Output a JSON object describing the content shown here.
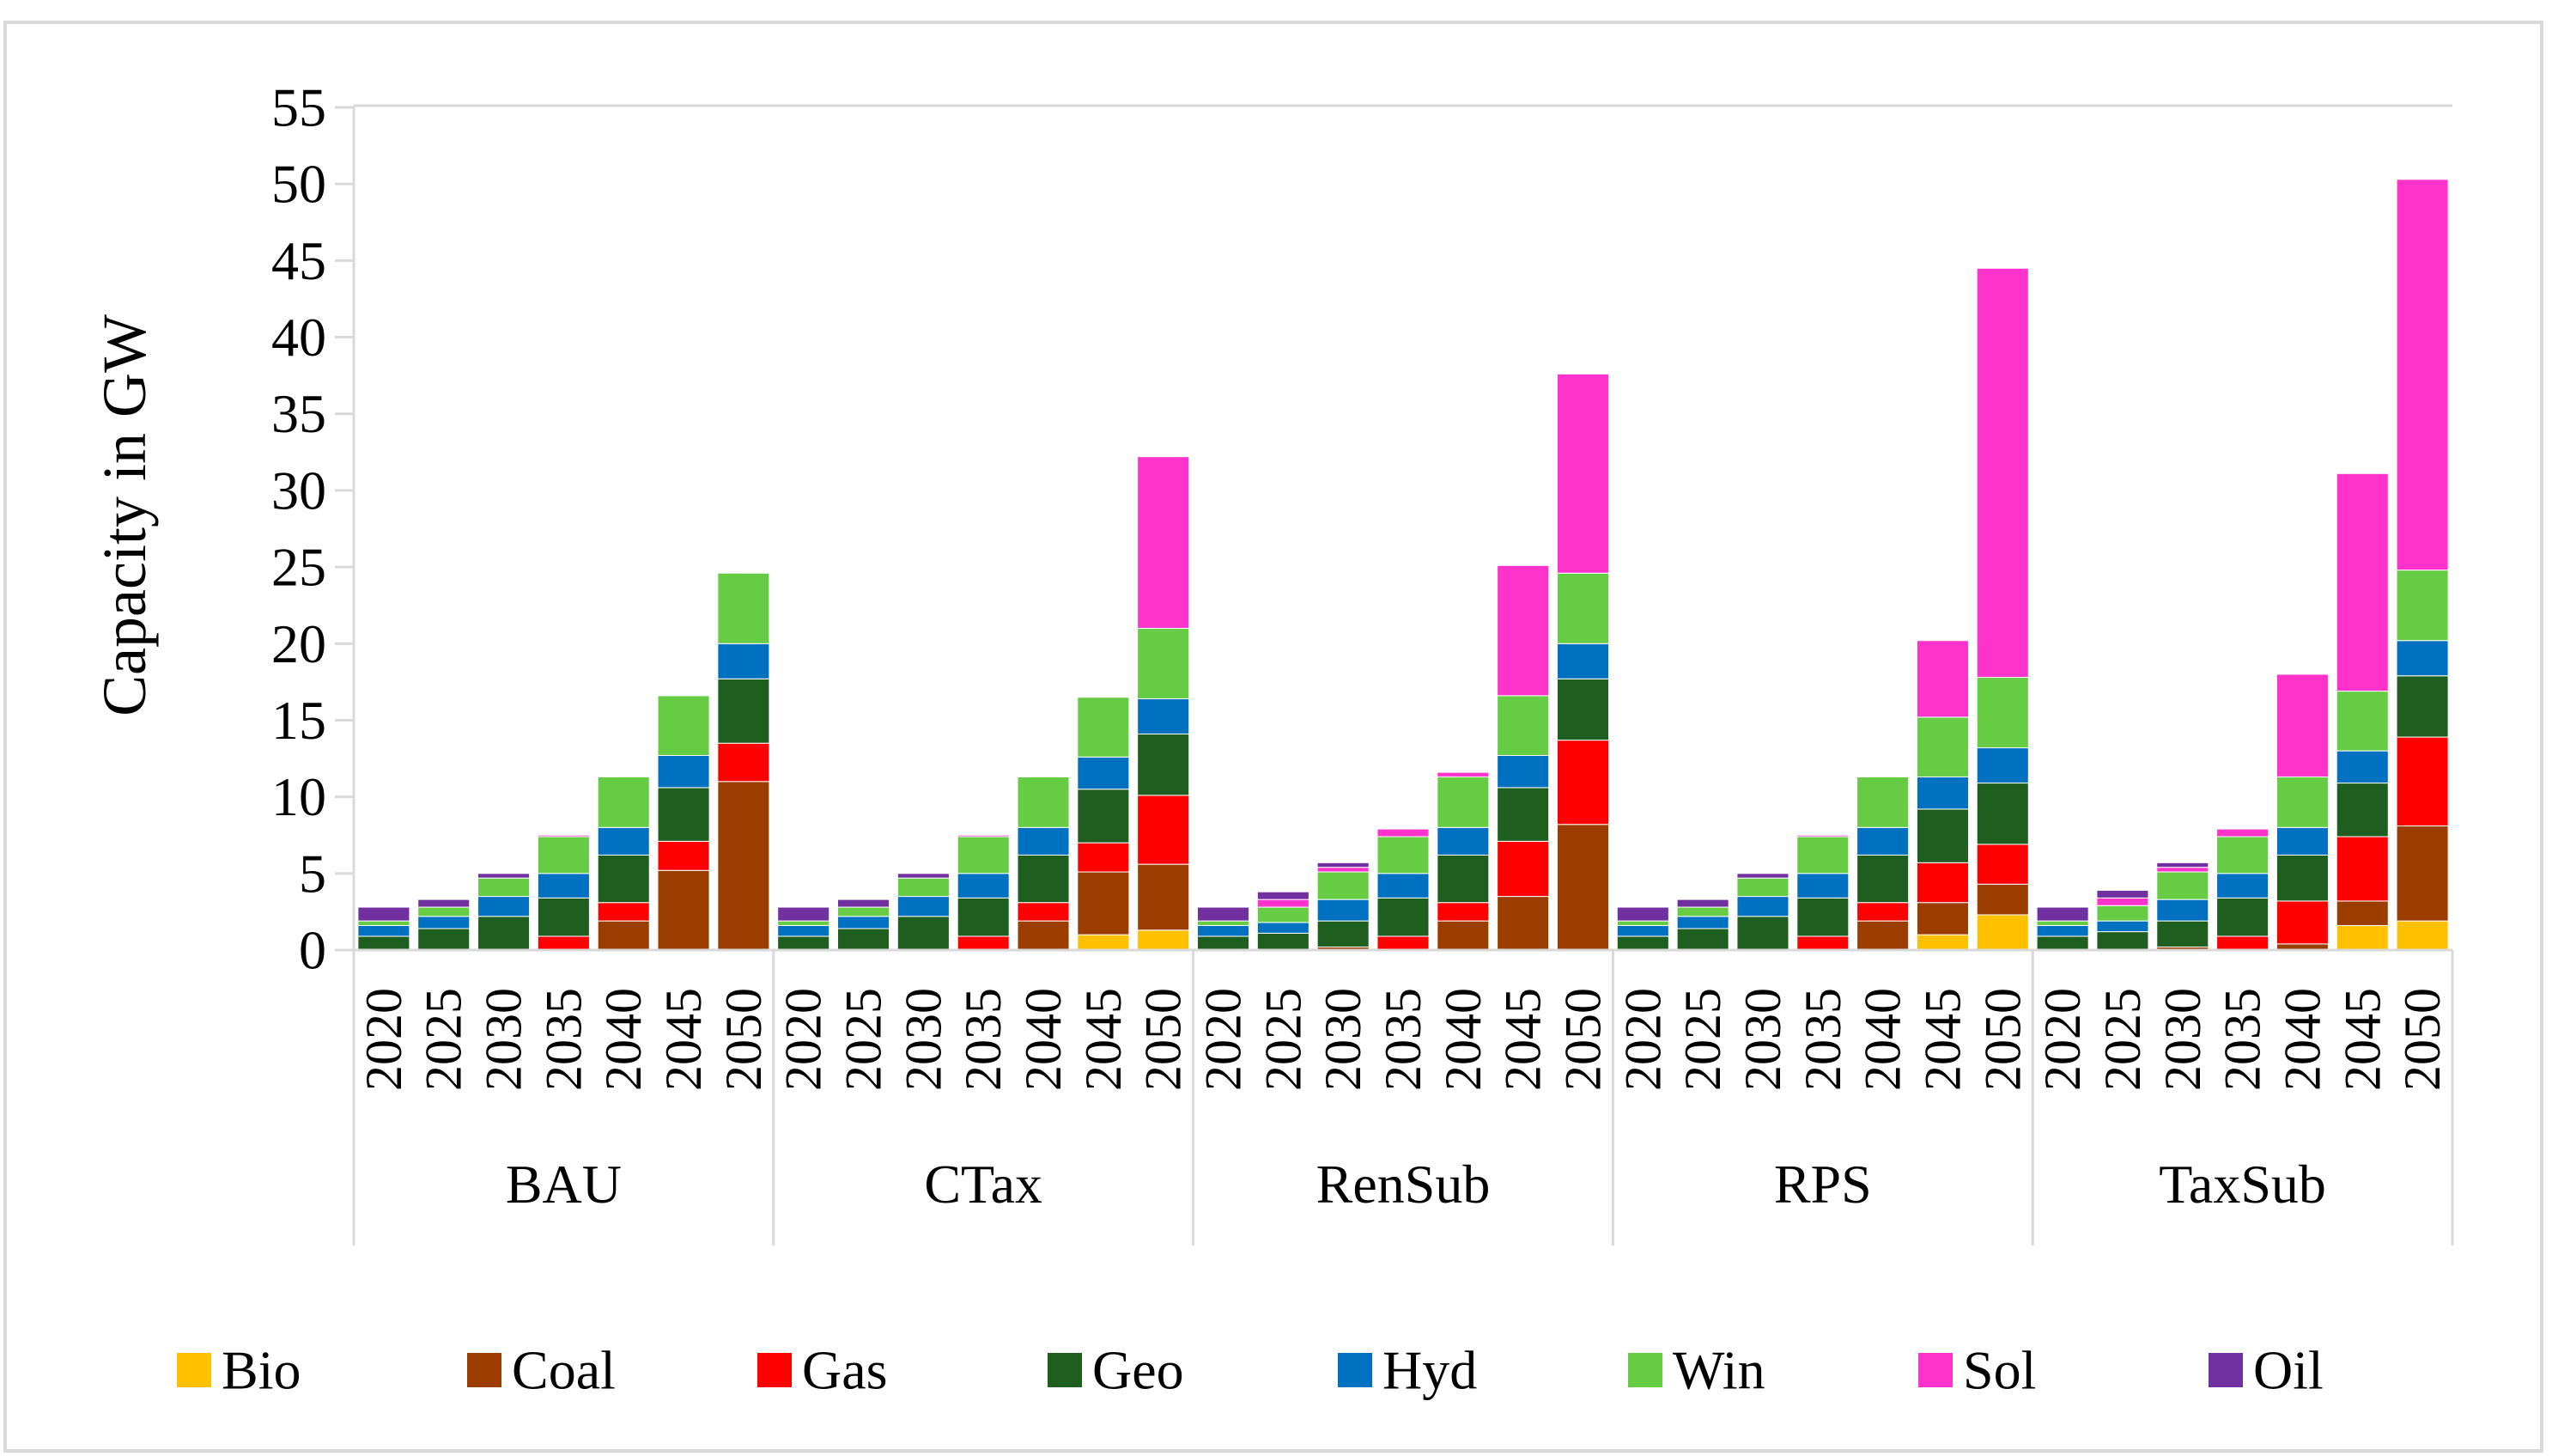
{
  "chart_data": {
    "type": "bar",
    "stacked": true,
    "title": "",
    "xlabel": "",
    "ylabel": "Capacity in GW",
    "ylim": [
      0,
      55
    ],
    "y_ticks": [
      0,
      5,
      10,
      15,
      20,
      25,
      30,
      35,
      40,
      45,
      50,
      55
    ],
    "grid": false,
    "legend_position": "bottom",
    "groups": [
      "BAU",
      "CTax",
      "RenSub",
      "RPS",
      "TaxSub"
    ],
    "years": [
      "2020",
      "2025",
      "2030",
      "2035",
      "2040",
      "2045",
      "2050"
    ],
    "series": [
      {
        "name": "Bio",
        "color": "#FFC000",
        "values": [
          [
            0,
            0,
            0,
            0,
            0,
            0,
            0
          ],
          [
            0,
            0,
            0,
            0,
            0,
            1.0,
            1.3
          ],
          [
            0,
            0,
            0,
            0,
            0,
            0,
            0
          ],
          [
            0,
            0,
            0,
            0,
            0,
            1.0,
            2.3
          ],
          [
            0,
            0,
            0,
            0,
            0,
            1.6,
            1.9
          ]
        ]
      },
      {
        "name": "Coal",
        "color": "#9C3D00",
        "values": [
          [
            0,
            0,
            0,
            0,
            1.9,
            5.2,
            11.0
          ],
          [
            0,
            0,
            0,
            0,
            1.9,
            4.1,
            4.3
          ],
          [
            0,
            0,
            0.2,
            0,
            1.9,
            3.5,
            8.2
          ],
          [
            0,
            0,
            0,
            0,
            1.9,
            2.1,
            2.0
          ],
          [
            0,
            0,
            0.2,
            0,
            0.4,
            1.6,
            6.2
          ]
        ]
      },
      {
        "name": "Gas",
        "color": "#FF0000",
        "values": [
          [
            0,
            0,
            0,
            0.9,
            1.2,
            1.9,
            2.5
          ],
          [
            0,
            0,
            0,
            0.9,
            1.2,
            1.9,
            4.5
          ],
          [
            0,
            0,
            0,
            0.9,
            1.2,
            3.6,
            5.5
          ],
          [
            0,
            0,
            0,
            0.9,
            1.2,
            2.6,
            2.6
          ],
          [
            0,
            0,
            0,
            0.9,
            2.8,
            4.2,
            5.8
          ]
        ]
      },
      {
        "name": "Geo",
        "color": "#1E5E1E",
        "values": [
          [
            0.9,
            1.4,
            2.2,
            2.5,
            3.1,
            3.5,
            4.2
          ],
          [
            0.9,
            1.4,
            2.2,
            2.5,
            3.1,
            3.5,
            4.0
          ],
          [
            0.9,
            1.1,
            1.7,
            2.5,
            3.1,
            3.5,
            4.0
          ],
          [
            0.9,
            1.4,
            2.2,
            2.5,
            3.1,
            3.5,
            4.0
          ],
          [
            0.9,
            1.2,
            1.7,
            2.5,
            3.0,
            3.5,
            4.0
          ]
        ]
      },
      {
        "name": "Hyd",
        "color": "#0070C0",
        "values": [
          [
            0.7,
            0.8,
            1.3,
            1.6,
            1.8,
            2.1,
            2.3
          ],
          [
            0.7,
            0.8,
            1.3,
            1.6,
            1.8,
            2.1,
            2.3
          ],
          [
            0.7,
            0.7,
            1.4,
            1.6,
            1.8,
            2.1,
            2.3
          ],
          [
            0.7,
            0.8,
            1.3,
            1.6,
            1.8,
            2.1,
            2.3
          ],
          [
            0.7,
            0.7,
            1.4,
            1.6,
            1.8,
            2.1,
            2.3
          ]
        ]
      },
      {
        "name": "Win",
        "color": "#66CC44",
        "values": [
          [
            0.3,
            0.6,
            1.2,
            2.4,
            3.3,
            3.9,
            4.6
          ],
          [
            0.3,
            0.6,
            1.2,
            2.4,
            3.3,
            3.9,
            4.6
          ],
          [
            0.3,
            1.0,
            1.8,
            2.4,
            3.3,
            3.9,
            4.6
          ],
          [
            0.3,
            0.6,
            1.2,
            2.4,
            3.3,
            3.9,
            4.6
          ],
          [
            0.3,
            1.0,
            1.8,
            2.4,
            3.3,
            3.9,
            4.6
          ]
        ]
      },
      {
        "name": "Sol",
        "color": "#FF33CC",
        "values": [
          [
            0,
            0,
            0,
            0.1,
            0,
            0,
            0
          ],
          [
            0,
            0,
            0,
            0.1,
            0,
            0,
            11.2
          ],
          [
            0,
            0.5,
            0.3,
            0.5,
            0.3,
            8.5,
            13.0
          ],
          [
            0,
            0,
            0,
            0.1,
            0,
            5.0,
            26.7
          ],
          [
            0,
            0.5,
            0.3,
            0.5,
            6.7,
            14.2,
            25.5
          ]
        ]
      },
      {
        "name": "Oil",
        "color": "#7030A0",
        "values": [
          [
            0.9,
            0.5,
            0.3,
            0,
            0,
            0,
            0
          ],
          [
            0.9,
            0.5,
            0.3,
            0,
            0,
            0,
            0
          ],
          [
            0.9,
            0.5,
            0.3,
            0,
            0,
            0,
            0
          ],
          [
            0.9,
            0.5,
            0.3,
            0,
            0,
            0,
            0
          ],
          [
            0.9,
            0.5,
            0.3,
            0,
            0,
            0,
            0
          ]
        ]
      }
    ]
  }
}
